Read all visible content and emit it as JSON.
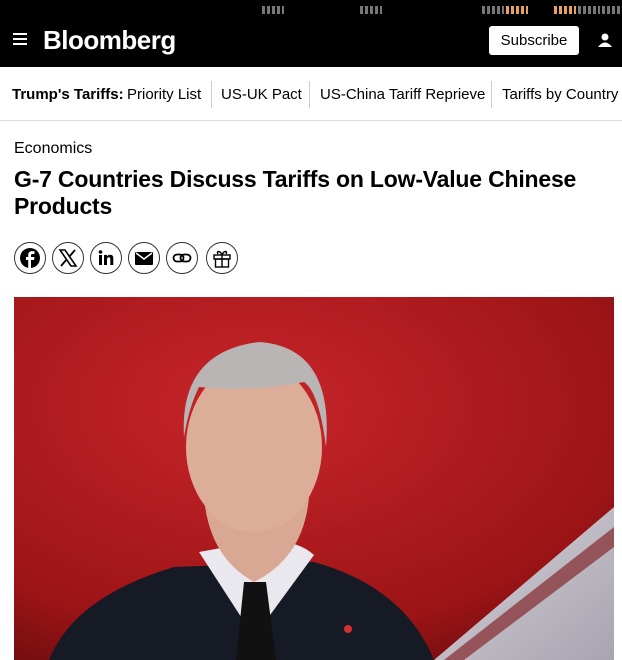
{
  "header": {
    "logo": "Bloomberg",
    "subscribe": "Subscribe"
  },
  "nav": {
    "label": "Trump's Tariffs:",
    "items": [
      "Priority List",
      "US-UK Pact",
      "US-China Tariff Reprieve",
      "Tariffs by Country"
    ]
  },
  "article": {
    "section": "Economics",
    "headline": "G-7 Countries Discuss Tariffs on Low-Value Chinese Products"
  }
}
